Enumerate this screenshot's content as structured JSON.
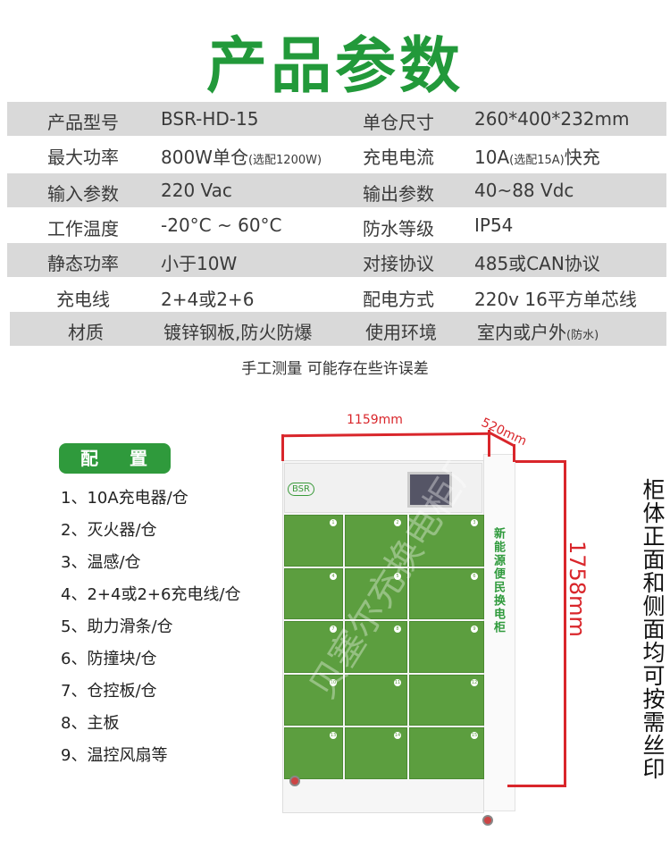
{
  "title": "产品参数",
  "specs": [
    {
      "k1": "产品型号",
      "v1": "BSR-HD-15",
      "v1s": "",
      "k2": "单仓尺寸",
      "v2": "260*400*232mm",
      "v2s": "",
      "v2t": ""
    },
    {
      "k1": "最大功率",
      "v1": "800W单仓",
      "v1s": "(选配1200W)",
      "k2": "充电电流",
      "v2": "10A",
      "v2s": "(选配15A)",
      "v2t": "快充"
    },
    {
      "k1": "输入参数",
      "v1": "220 Vac",
      "v1s": "",
      "k2": "输出参数",
      "v2": "40~88 Vdc",
      "v2s": "",
      "v2t": ""
    },
    {
      "k1": "工作温度",
      "v1": "-20°C ~ 60°C",
      "v1s": "",
      "k2": "防水等级",
      "v2": "IP54",
      "v2s": "",
      "v2t": ""
    },
    {
      "k1": "静态功率",
      "v1": "小于10W",
      "v1s": "",
      "k2": "对接协议",
      "v2": "485或CAN协议",
      "v2s": "",
      "v2t": ""
    },
    {
      "k1": "充电线",
      "v1": "2+4或2+6",
      "v1s": "",
      "k2": "配电方式",
      "v2": "220v 16平方单芯线",
      "v2s": "",
      "v2t": ""
    },
    {
      "k1": "材质",
      "v1": "镀锌钢板,防火防爆",
      "v1s": "",
      "k2": "使用环境",
      "v2": "室内或户外",
      "v2s": "(防水)",
      "v2t": ""
    }
  ],
  "note": "手工测量 可能存在些许误差",
  "config": {
    "label": "配 置",
    "items": [
      "1、10A充电器/仓",
      "2、灭火器/仓",
      "3、温感/仓",
      "4、2+4或2+6充电线/仓",
      "5、助力滑条/仓",
      "6、防撞块/仓",
      "7、仓控板/仓",
      "8、主板",
      "9、温控风扇等"
    ]
  },
  "cabinet": {
    "logo": "BSR",
    "side_text": "新能源便民换电柜",
    "watermark": "贝塞尔充换电柜厂",
    "door_numbers": [
      "1",
      "2",
      "3",
      "4",
      "5",
      "6",
      "7",
      "8",
      "9",
      "10",
      "11",
      "12",
      "13",
      "14",
      "15"
    ],
    "color": "#5c9e3f"
  },
  "dimensions": {
    "width": "1159mm",
    "depth": "520mm",
    "height": "1758mm"
  },
  "side_caption": "柜体正面和侧面均可按需丝印",
  "colors": {
    "brand_green": "#22993a",
    "dimension_red": "#d9262b",
    "row_grey": "#d9d9d9"
  }
}
